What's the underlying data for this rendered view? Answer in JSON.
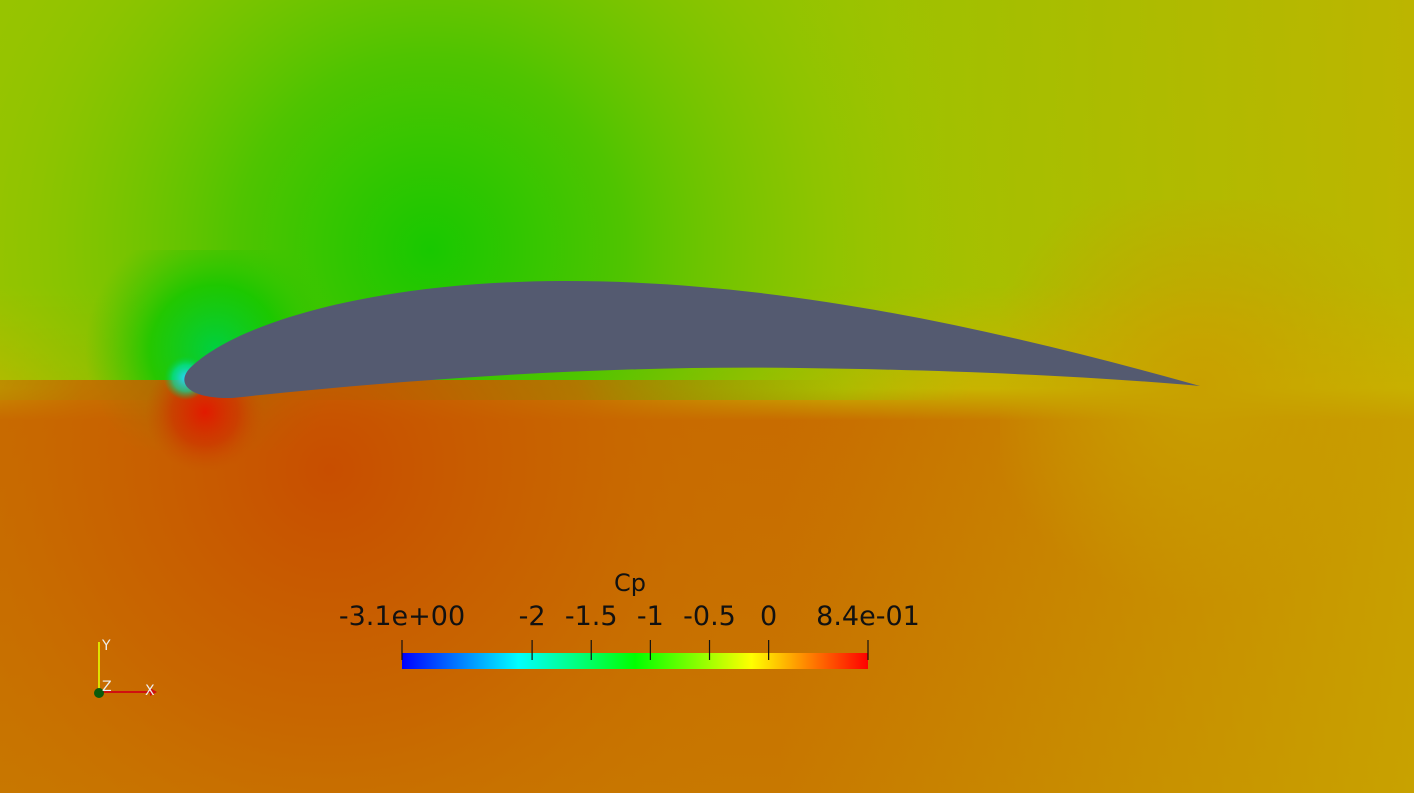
{
  "scalar_bar": {
    "title": "Cp",
    "min_label": "-3.1e+00",
    "max_label": "8.4e-01",
    "range": [
      -3.1,
      0.84
    ],
    "ticks": [
      {
        "value": -2,
        "label": "-2"
      },
      {
        "value": -1.5,
        "label": "-1.5"
      },
      {
        "value": -1,
        "label": "-1"
      },
      {
        "value": -0.5,
        "label": "-0.5"
      },
      {
        "value": 0,
        "label": "0"
      }
    ],
    "colormap": [
      "#0000ff",
      "#00ffff",
      "#00ff00",
      "#ffff00",
      "#ff0000"
    ]
  },
  "orientation_axes": {
    "y_label": "Y",
    "z_label": "Z",
    "x_label": "X",
    "colors": {
      "x": "#d01010",
      "y": "#e0e000",
      "z": "#0a5a0a"
    }
  },
  "colors": {
    "airfoil": "#545a70",
    "upper_field": "#7cc400",
    "lower_field": "#c87a00",
    "suction_peak": "#00c800",
    "stagnation": "#e02000"
  }
}
